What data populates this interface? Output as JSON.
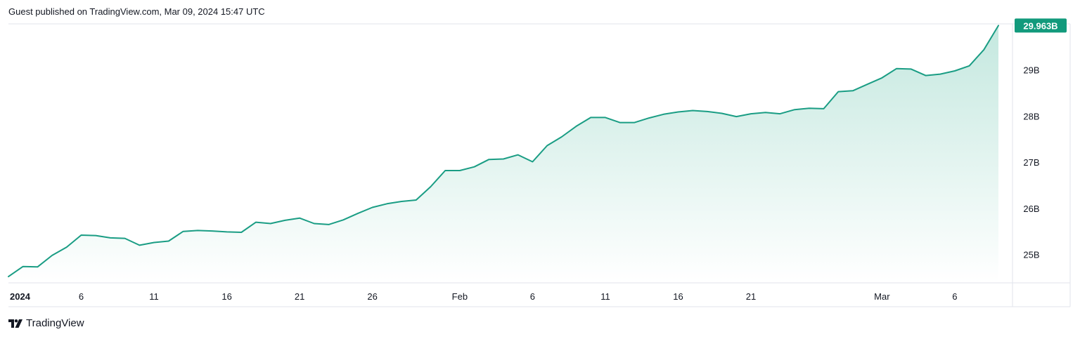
{
  "header": {
    "publish_text": "Guest published on TradingView.com, Mar 09, 2024 15:47 UTC"
  },
  "footer": {
    "brand": "TradingView"
  },
  "colors": {
    "line": "#1a9d84",
    "area_top": "#c4e8df",
    "last_label_bg": "#129a7c",
    "axis_border": "#e0e3eb"
  },
  "chart_data": {
    "type": "area",
    "x": [
      "2024-01-01",
      "2024-01-02",
      "2024-01-03",
      "2024-01-04",
      "2024-01-05",
      "2024-01-06",
      "2024-01-07",
      "2024-01-08",
      "2024-01-09",
      "2024-01-10",
      "2024-01-11",
      "2024-01-12",
      "2024-01-13",
      "2024-01-14",
      "2024-01-15",
      "2024-01-16",
      "2024-01-17",
      "2024-01-18",
      "2024-01-19",
      "2024-01-20",
      "2024-01-21",
      "2024-01-22",
      "2024-01-23",
      "2024-01-24",
      "2024-01-25",
      "2024-01-26",
      "2024-01-27",
      "2024-01-28",
      "2024-01-29",
      "2024-01-30",
      "2024-01-31",
      "2024-02-01",
      "2024-02-02",
      "2024-02-03",
      "2024-02-04",
      "2024-02-05",
      "2024-02-06",
      "2024-02-07",
      "2024-02-08",
      "2024-02-09",
      "2024-02-10",
      "2024-02-11",
      "2024-02-12",
      "2024-02-13",
      "2024-02-14",
      "2024-02-15",
      "2024-02-16",
      "2024-02-17",
      "2024-02-18",
      "2024-02-19",
      "2024-02-20",
      "2024-02-21",
      "2024-02-22",
      "2024-02-23",
      "2024-02-24",
      "2024-02-25",
      "2024-02-26",
      "2024-02-27",
      "2024-02-28",
      "2024-02-29",
      "2024-03-01",
      "2024-03-02",
      "2024-03-03",
      "2024-03-04",
      "2024-03-05",
      "2024-03-06",
      "2024-03-07",
      "2024-03-08",
      "2024-03-09"
    ],
    "values": [
      24.52,
      24.74,
      24.73,
      24.98,
      25.16,
      25.42,
      25.41,
      25.36,
      25.35,
      25.2,
      25.26,
      25.29,
      25.5,
      25.52,
      25.51,
      25.49,
      25.48,
      25.7,
      25.67,
      25.74,
      25.79,
      25.67,
      25.65,
      25.75,
      25.89,
      26.02,
      26.1,
      26.15,
      26.18,
      26.47,
      26.82,
      26.82,
      26.9,
      27.06,
      27.07,
      27.16,
      27.01,
      27.36,
      27.55,
      27.78,
      27.97,
      27.97,
      27.86,
      27.86,
      27.96,
      28.04,
      28.09,
      28.12,
      28.1,
      28.06,
      27.99,
      28.05,
      28.08,
      28.05,
      28.14,
      28.17,
      28.16,
      28.53,
      28.55,
      28.69,
      28.83,
      29.03,
      29.02,
      28.88,
      28.91,
      28.98,
      29.09,
      29.44,
      29.963
    ],
    "unit": "B",
    "y_ticks": [
      "25B",
      "26B",
      "27B",
      "28B",
      "29B"
    ],
    "y_tick_values": [
      25,
      26,
      27,
      28,
      29
    ],
    "x_tick_labels": [
      {
        "label": "2024",
        "date": "2024-01-01",
        "bold": true
      },
      {
        "label": "6",
        "date": "2024-01-06"
      },
      {
        "label": "11",
        "date": "2024-01-11"
      },
      {
        "label": "16",
        "date": "2024-01-16"
      },
      {
        "label": "21",
        "date": "2024-01-21"
      },
      {
        "label": "26",
        "date": "2024-01-26"
      },
      {
        "label": "Feb",
        "date": "2024-02-01"
      },
      {
        "label": "6",
        "date": "2024-02-06"
      },
      {
        "label": "11",
        "date": "2024-02-11"
      },
      {
        "label": "16",
        "date": "2024-02-16"
      },
      {
        "label": "21",
        "date": "2024-02-21"
      },
      {
        "label": "Mar",
        "date": "2024-03-01"
      },
      {
        "label": "6",
        "date": "2024-03-06"
      }
    ],
    "last_value_label": "29.963B",
    "ylim": [
      24.4,
      30.0
    ],
    "grid": false,
    "legend": "none"
  }
}
